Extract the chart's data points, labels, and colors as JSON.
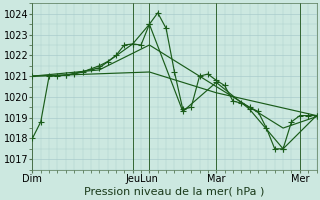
{
  "bg_color": "#cce8e0",
  "grid_color": "#aacccc",
  "line_color": "#1a5c1a",
  "xlabel": "Pression niveau de la mer( hPa )",
  "xlabel_fontsize": 8,
  "tick_fontsize": 7,
  "ylim": [
    1016.5,
    1024.5
  ],
  "yticks": [
    1017,
    1018,
    1019,
    1020,
    1021,
    1022,
    1023,
    1024
  ],
  "day_labels": [
    "Dim",
    "Jeu",
    "Lun",
    "Mar",
    "Mer"
  ],
  "day_positions": [
    0,
    72,
    84,
    132,
    192
  ],
  "xlim": [
    0,
    204
  ],
  "vline_color": "#336633",
  "series1_x": [
    0,
    6,
    12,
    18,
    24,
    30,
    36,
    42,
    48,
    54,
    60,
    66,
    72,
    78,
    84,
    90,
    96,
    102,
    108,
    114,
    120,
    126,
    132,
    138,
    144,
    150,
    156,
    162,
    168,
    174,
    180,
    186,
    192,
    198,
    204
  ],
  "series1_y": [
    1018.0,
    1018.8,
    1021.0,
    1021.0,
    1021.05,
    1021.1,
    1021.2,
    1021.35,
    1021.5,
    1021.7,
    1022.0,
    1022.5,
    1022.55,
    1022.5,
    1023.5,
    1024.05,
    1023.3,
    1021.2,
    1019.4,
    1019.5,
    1021.0,
    1021.1,
    1020.8,
    1020.55,
    1019.8,
    1019.7,
    1019.5,
    1019.3,
    1018.5,
    1017.5,
    1017.5,
    1018.8,
    1019.1,
    1019.1,
    1019.1
  ],
  "series2_x": [
    0,
    24,
    48,
    72,
    84,
    108,
    132,
    156,
    180,
    204
  ],
  "series2_y": [
    1021.0,
    1021.05,
    1021.4,
    1022.55,
    1023.5,
    1019.3,
    1020.7,
    1019.4,
    1017.5,
    1019.1
  ],
  "series3_x": [
    0,
    48,
    84,
    132,
    180,
    204
  ],
  "series3_y": [
    1021.0,
    1021.3,
    1022.5,
    1020.5,
    1018.5,
    1019.05
  ],
  "series4_x": [
    0,
    84,
    132,
    204
  ],
  "series4_y": [
    1021.0,
    1021.2,
    1020.2,
    1019.1
  ]
}
